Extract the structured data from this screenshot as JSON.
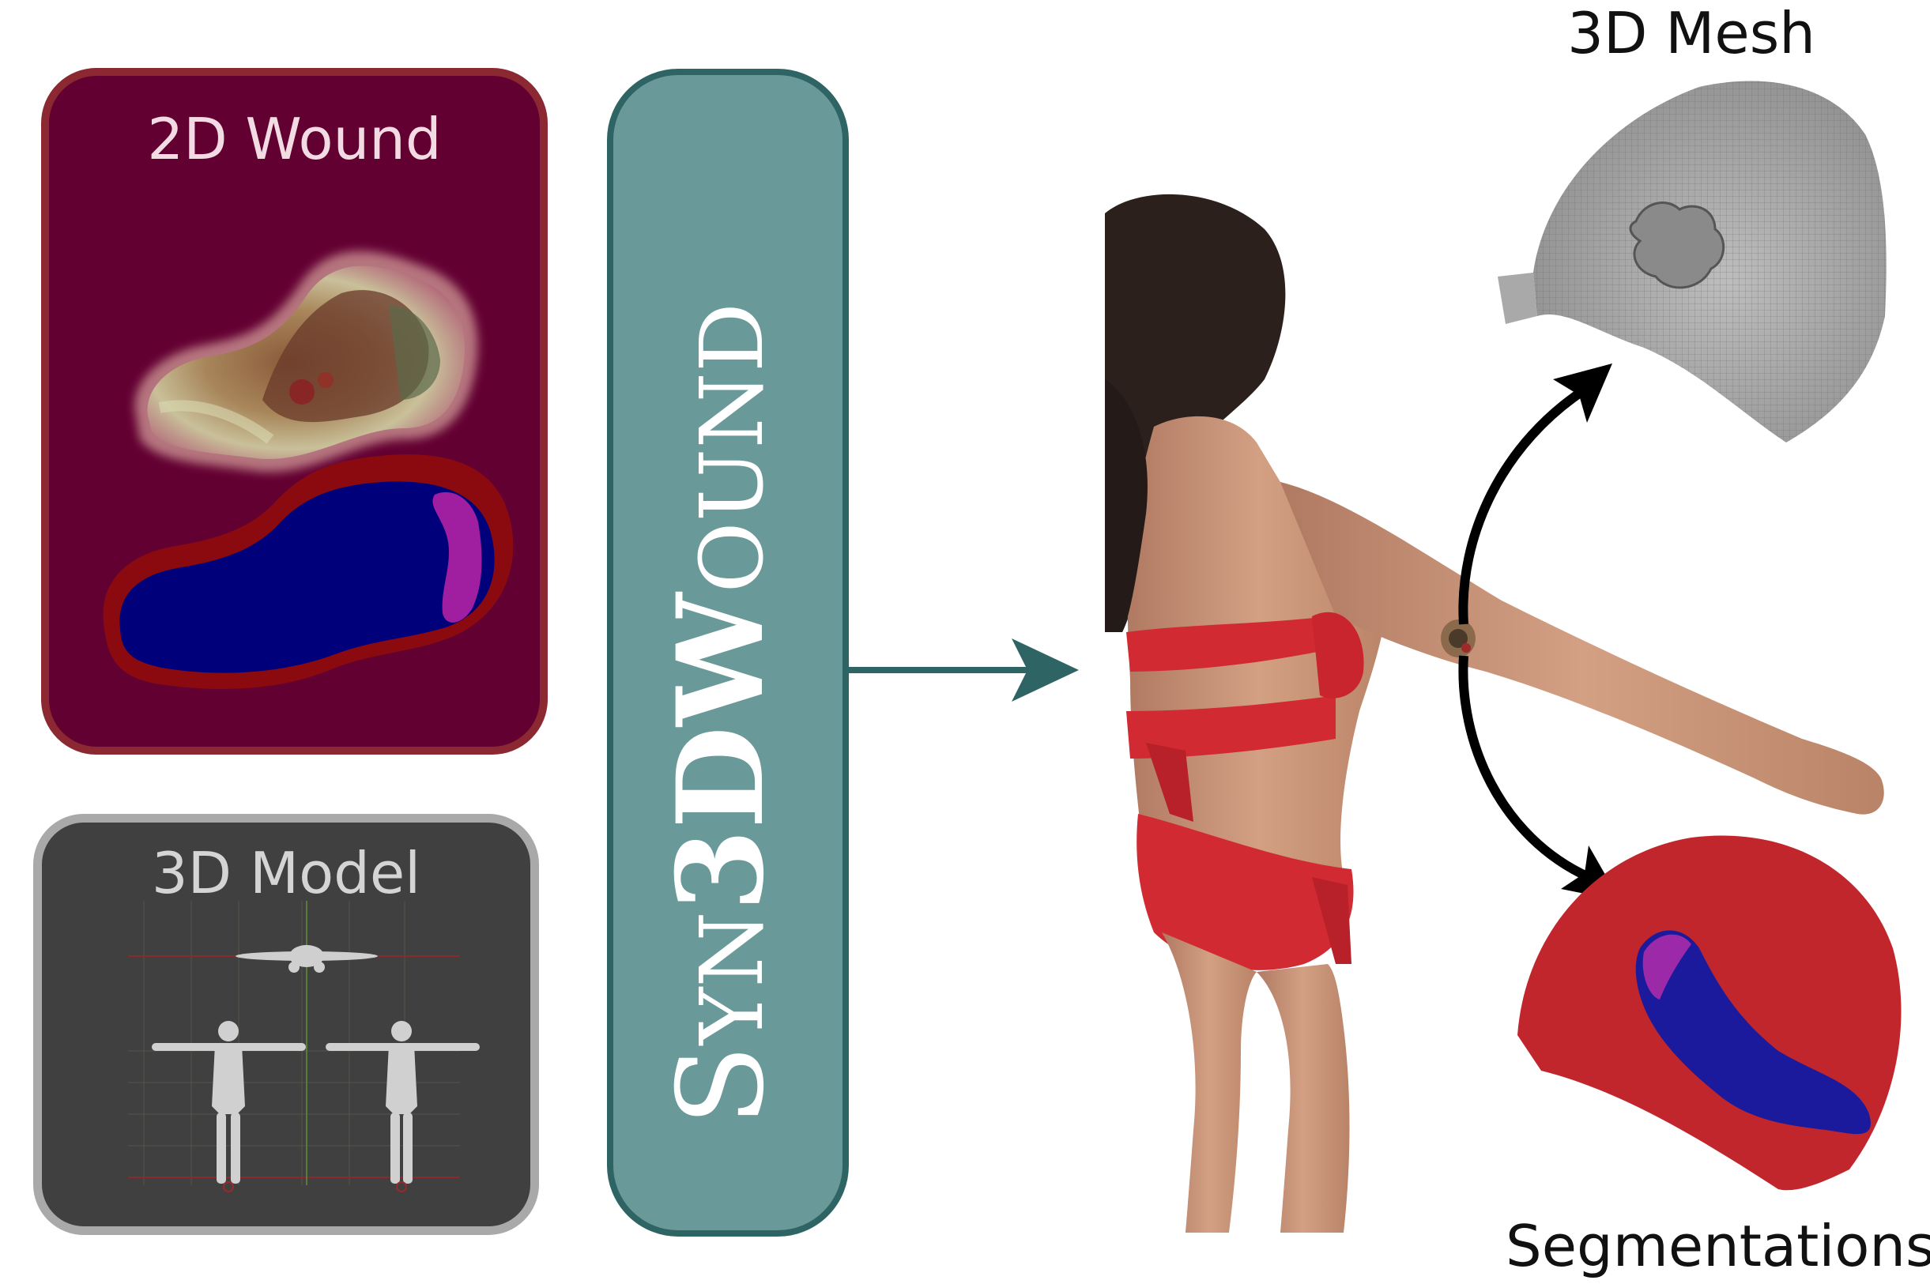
{
  "panels": {
    "wound_2d": {
      "label": "2D Wound"
    },
    "model_3d": {
      "label": "3D Model"
    },
    "pipeline": {
      "prefix": "Syn",
      "big_3d": "3D",
      "suffix": "Wound"
    }
  },
  "outputs": {
    "mesh": {
      "label": "3D Mesh"
    },
    "segmentations": {
      "label": "Segmentations"
    }
  },
  "colors": {
    "wound_panel_bg": "#630032",
    "wound_panel_border": "#8c2831",
    "model_panel_bg": "#404040",
    "pipeline_bg": "#6a999a",
    "arrow_teal": "#2e6464",
    "seg_skin": "#c0262c",
    "seg_wound": "#1c1a9c",
    "seg_slough": "#9c2aa8"
  }
}
